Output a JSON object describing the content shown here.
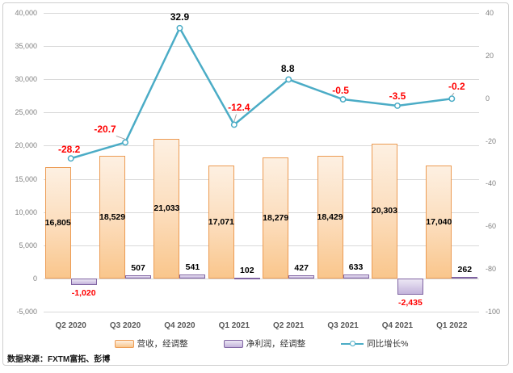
{
  "chart_data": {
    "type": "combo-bar-line",
    "categories": [
      "Q2 2020",
      "Q3 2020",
      "Q4 2020",
      "Q1 2021",
      "Q2 2021",
      "Q3 2021",
      "Q4 2021",
      "Q1 2022"
    ],
    "series": [
      {
        "name": "营收，经调整",
        "type": "bar",
        "axis": "left",
        "values": [
          16805,
          18529,
          21033,
          17071,
          18279,
          18429,
          20303,
          17040
        ],
        "labels": [
          "16,805",
          "18,529",
          "21,033",
          "17,071",
          "18,279",
          "18,429",
          "20,303",
          "17,040"
        ]
      },
      {
        "name": "净利润，经调整",
        "type": "bar",
        "axis": "left",
        "values": [
          -1020,
          507,
          541,
          102,
          427,
          633,
          -2435,
          262
        ],
        "labels": [
          "-1,020",
          "507",
          "541",
          "102",
          "427",
          "633",
          "-2,435",
          "262"
        ]
      },
      {
        "name": "同比增长%",
        "type": "line",
        "axis": "right",
        "values": [
          -28.2,
          -20.7,
          32.9,
          -12.4,
          8.8,
          -0.5,
          -3.5,
          -0.2
        ],
        "labels": [
          "-28.2",
          "-20.7",
          "32.9",
          "-12.4",
          "8.8",
          "-0.5",
          "-3.5",
          "-0.2"
        ]
      }
    ],
    "left_axis": {
      "min": -5000,
      "max": 40000,
      "step": 5000,
      "ticks": [
        "40,000",
        "35,000",
        "30,000",
        "25,000",
        "20,000",
        "15,000",
        "10,000",
        "5,000",
        "0",
        "-5,000"
      ]
    },
    "right_axis": {
      "min": -100,
      "max": 40,
      "step": 20,
      "ticks": [
        "40",
        "20",
        "0",
        "-20",
        "-40",
        "-60",
        "-80",
        "-100"
      ]
    },
    "grid": true,
    "legend_position": "bottom"
  },
  "legend": {
    "items": [
      {
        "label": "营收，经调整",
        "swatch": "bar-orange"
      },
      {
        "label": "净利润，经调整",
        "swatch": "bar-purple"
      },
      {
        "label": "同比增长%",
        "swatch": "line-teal"
      }
    ]
  },
  "source": {
    "label": "数据来源：FXTM富拓、彭博"
  },
  "colors": {
    "revenue_border": "#EC9B53",
    "profit_border": "#8064A2",
    "line": "#4BACC6",
    "negative_label": "#FF0000",
    "positive_label": "#000000",
    "gridline": "#D9D9D9",
    "axis_text": "#808080",
    "category_text": "#595959",
    "leader_line": "#A6A6A6"
  }
}
